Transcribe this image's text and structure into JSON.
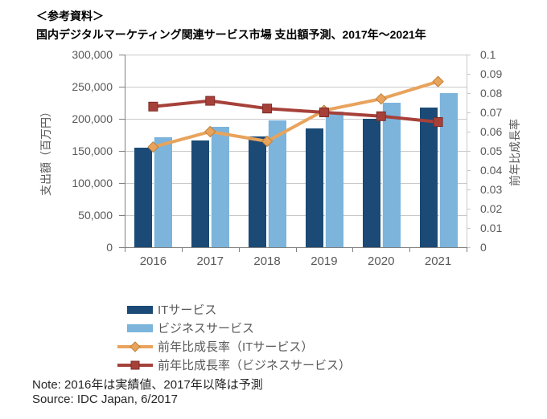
{
  "title": {
    "line1": "＜参考資料＞",
    "line2": "国内デジタルマーケティング関連サービス市場 支出額予測、2017年～2021年"
  },
  "note": "Note: 2016年は実績値、2017年以降は予測",
  "source": "Source: IDC Japan, 6/2017",
  "colors": {
    "it_bar": "#1A4A75",
    "business_bar": "#7CB4DC",
    "it_growth_line": "#E8A35C",
    "it_growth_marker_border": "#C0803A",
    "business_growth_line": "#A6413A",
    "business_growth_marker_border": "#7E2B26",
    "gridline": "#C9C9C9",
    "axis_line": "#808080",
    "axis_text": "#595959",
    "note_text": "#262626"
  },
  "chart_data": {
    "type": "bar",
    "subtype": "combo-bar-line-dual-axis",
    "title": "国内デジタルマーケティング関連サービス市場 支出額予測、2017年～2021年",
    "categories": [
      "2016",
      "2017",
      "2018",
      "2019",
      "2020",
      "2021"
    ],
    "bar_series": [
      {
        "name": "ITサービス",
        "color": "#1A4A75",
        "values": [
          155000,
          166000,
          173000,
          185000,
          200000,
          218000
        ]
      },
      {
        "name": "ビジネスサービス",
        "color": "#7CB4DC",
        "values": [
          171000,
          187000,
          197000,
          211000,
          225000,
          240000
        ]
      }
    ],
    "line_series": [
      {
        "name": "前年比成長率（ITサービス）",
        "color": "#E8A35C",
        "border": "#C0803A",
        "marker": "diamond",
        "axis": "right",
        "values": [
          0.052,
          0.06,
          0.055,
          0.071,
          0.077,
          0.086
        ]
      },
      {
        "name": "前年比成長率（ビジネスサービス）",
        "color": "#A6413A",
        "border": "#7E2B26",
        "marker": "square",
        "axis": "right",
        "values": [
          0.073,
          0.076,
          0.072,
          0.07,
          0.068,
          0.065
        ]
      }
    ],
    "left_axis": {
      "label": "支出額（百万円）",
      "min": 0,
      "max": 300000,
      "step": 50000,
      "tick_labels_top_to_bottom": [
        "300,000",
        "250,000",
        "200,000",
        "150,000",
        "100,000",
        "50,000",
        "0"
      ]
    },
    "right_axis": {
      "label": "前年比成長率",
      "min": 0,
      "max": 0.1,
      "step": 0.01,
      "tick_labels_top_to_bottom": [
        "0.1",
        "0.09",
        "0.08",
        "0.07",
        "0.06",
        "0.05",
        "0.04",
        "0.03",
        "0.02",
        "0.01",
        "0"
      ]
    },
    "grid": true,
    "legend_position": "bottom-left"
  }
}
